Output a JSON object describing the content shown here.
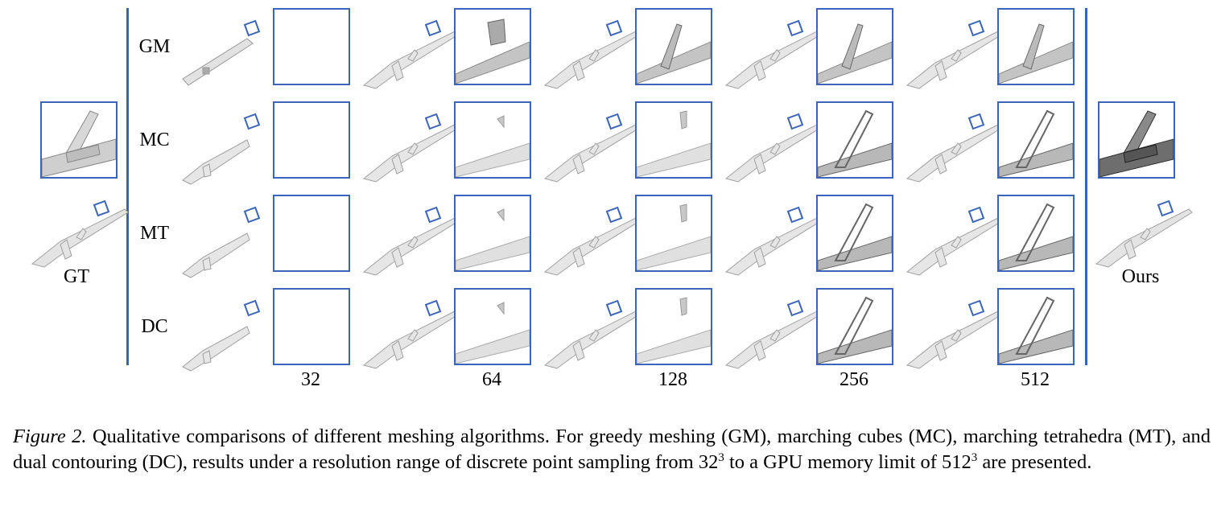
{
  "figure": {
    "rows": [
      "GM",
      "MC",
      "MT",
      "DC"
    ],
    "resolutions": [
      "32",
      "64",
      "128",
      "256",
      "512"
    ],
    "gt_label": "GT",
    "ours_label": "Ours",
    "caption": {
      "figure_label": "Figure 2.",
      "text_1": " Qualitative comparisons of different meshing algorithms. For greedy meshing (GM), marching cubes (MC), marching tetrahedra (MT), and dual contouring (DC), results under a resolution range of discrete point sampling from 32",
      "sup_1": "3",
      "text_2": " to a GPU memory limit of 512",
      "sup_2": "3",
      "text_3": " are presented."
    }
  },
  "colors": {
    "accent": "#3a63b4",
    "mesh_fill": "#e6e6e6",
    "mesh_stroke": "#9a9a9a"
  }
}
